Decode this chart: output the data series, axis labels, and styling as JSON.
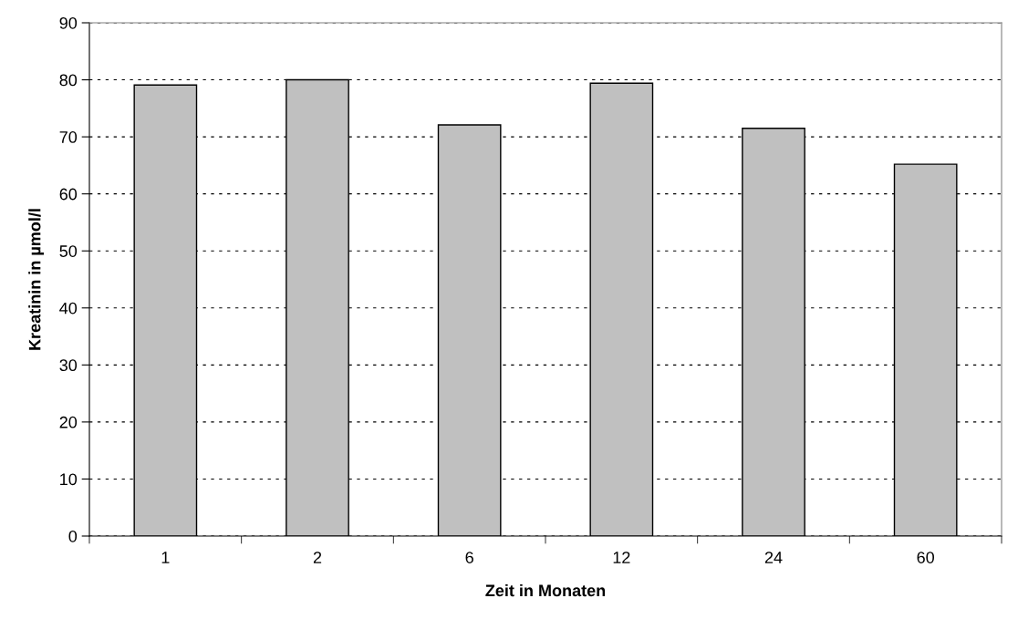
{
  "chart_data": {
    "type": "bar",
    "xlabel": "Zeit in Monaten",
    "ylabel": "Kreatinin in µmol/l",
    "categories": [
      "1",
      "2",
      "6",
      "12",
      "24",
      "60"
    ],
    "values": [
      79.1,
      80.0,
      72.1,
      79.4,
      71.5,
      65.2
    ],
    "color": "#c0c0c0",
    "ylim": [
      0,
      90
    ],
    "yticks": [
      0,
      10,
      20,
      30,
      40,
      50,
      60,
      70,
      80,
      90
    ],
    "grid": "y",
    "line_style": "dashed"
  }
}
